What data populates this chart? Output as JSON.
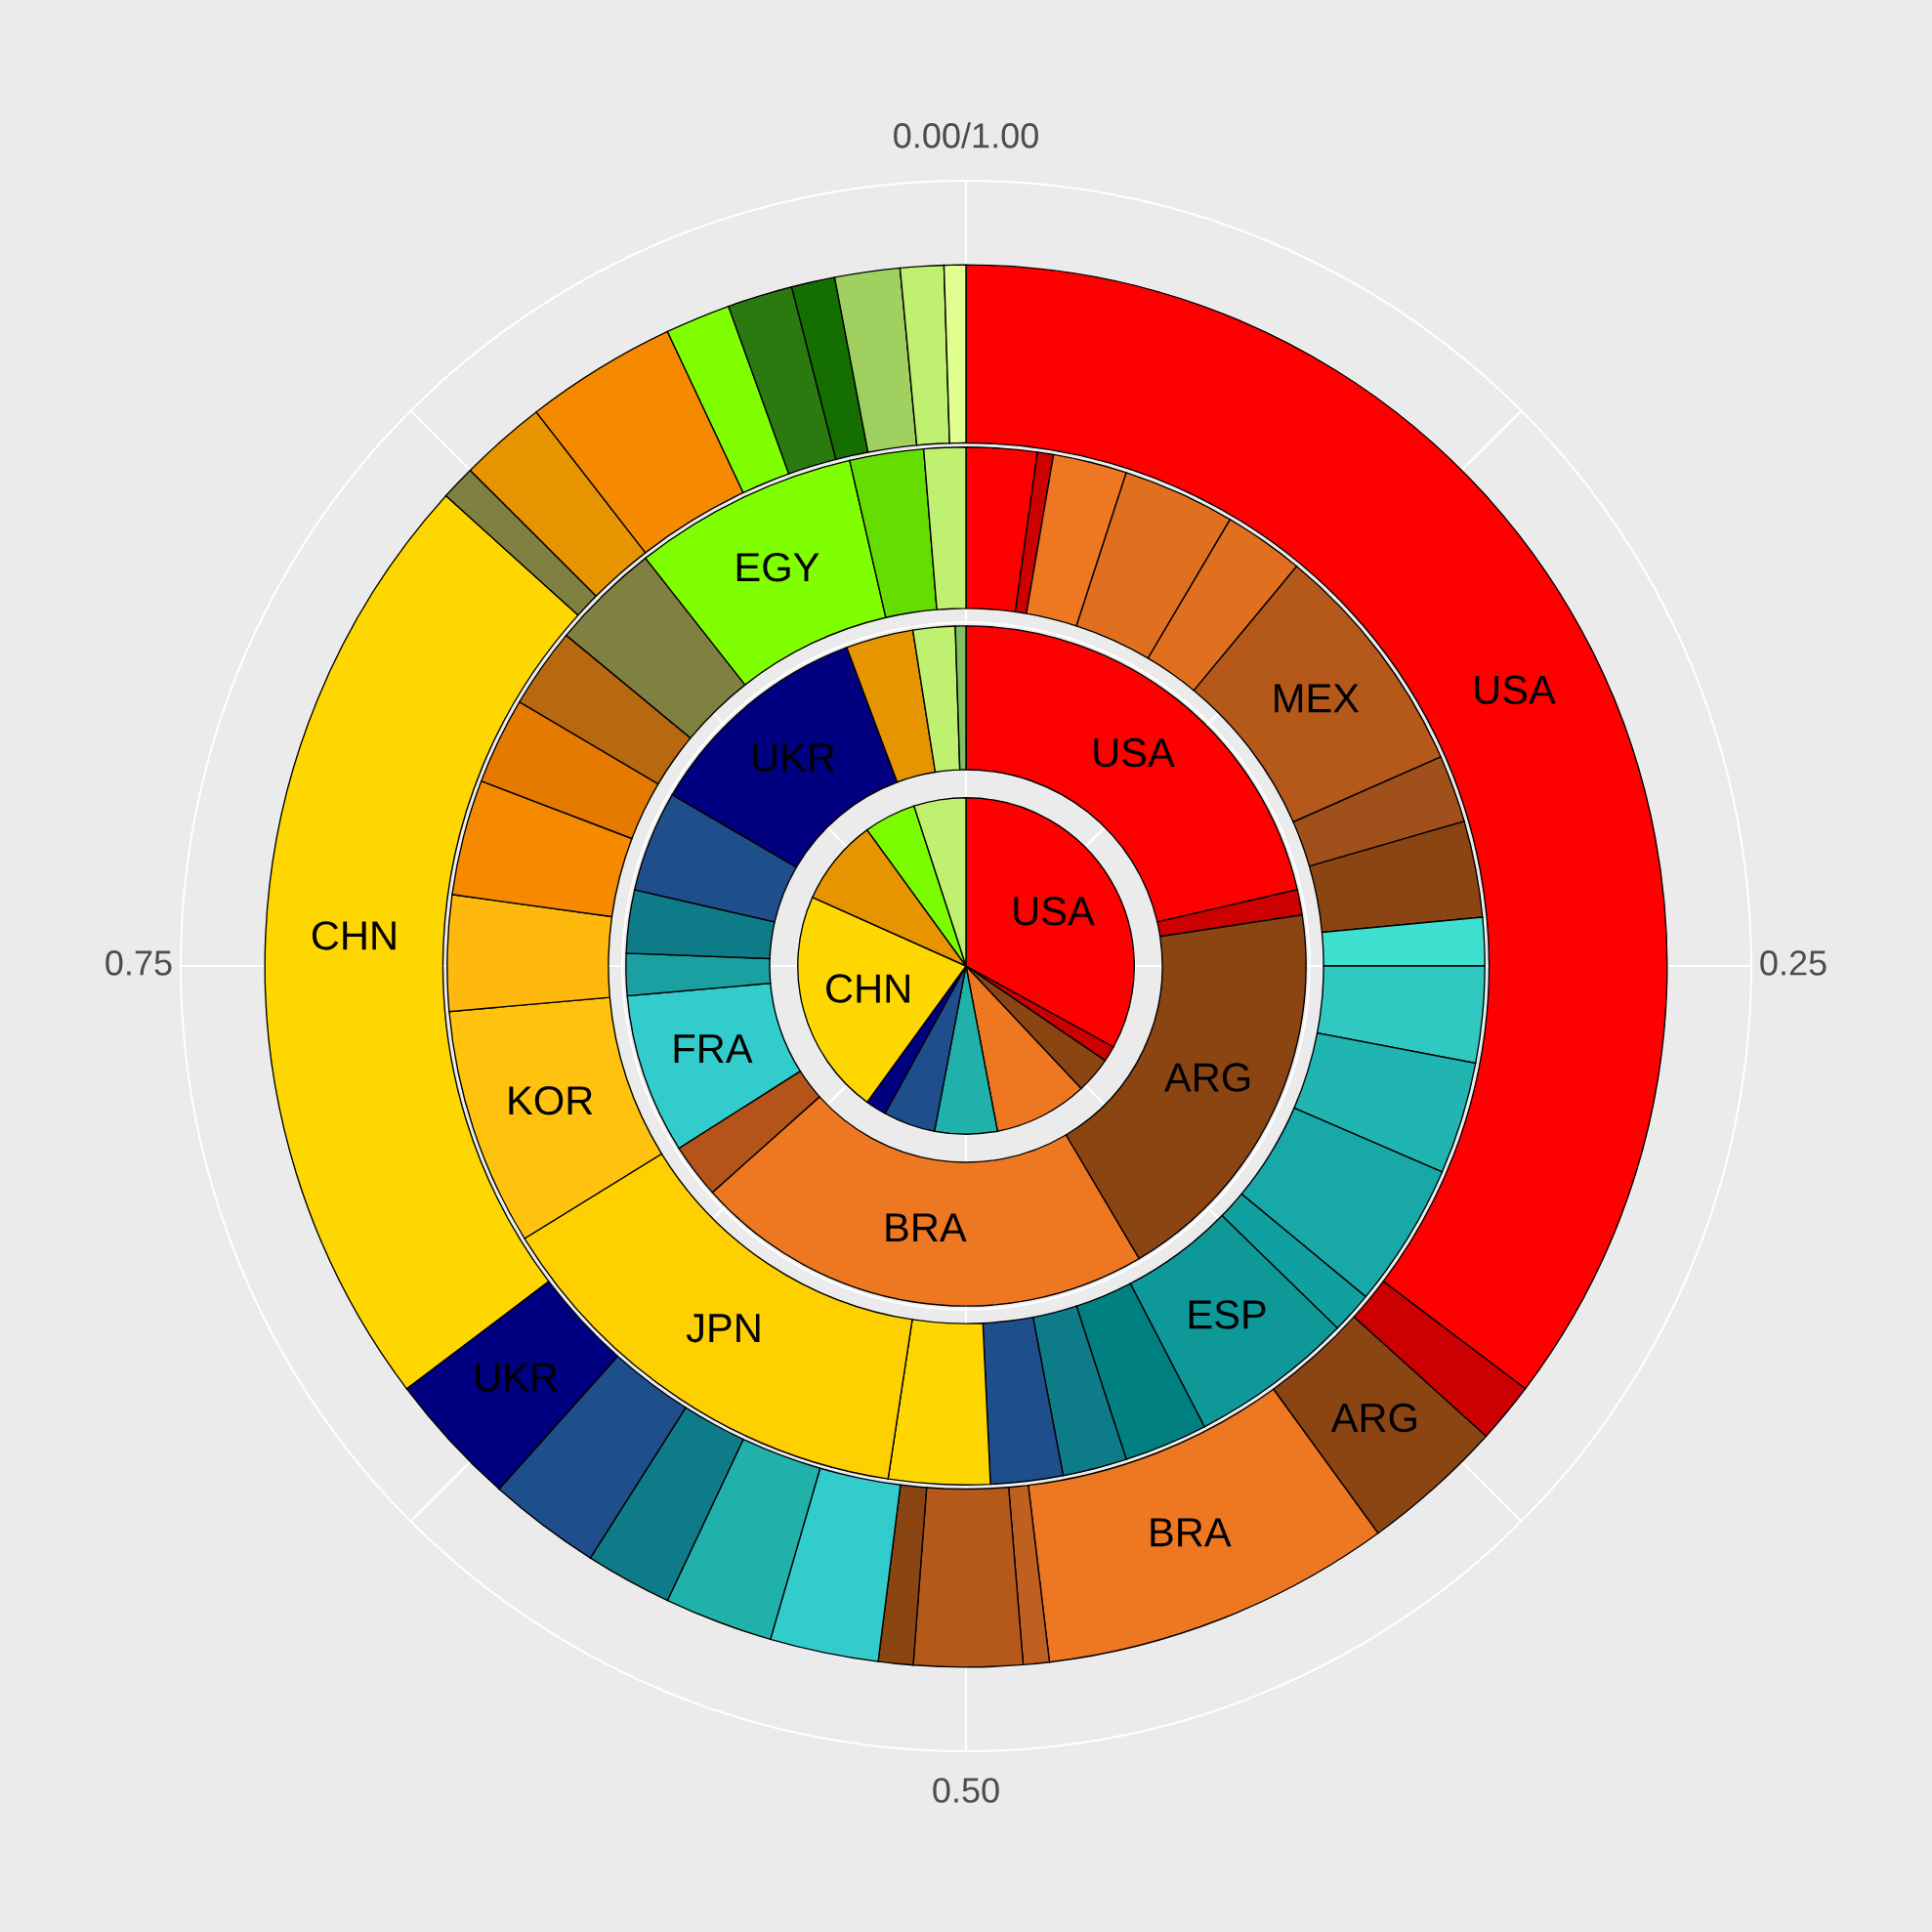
{
  "chart_data": {
    "type": "pie",
    "grid": true,
    "annotations": [
      "0.00/1.00",
      "0.25",
      "0.50",
      "0.75"
    ],
    "series": [
      {
        "value_labels": [
          "USA",
          null,
          null,
          null,
          null,
          null,
          null,
          "CHN",
          null,
          null,
          null
        ],
        "values": [
          33,
          1.5,
          3.5,
          9,
          6,
          5,
          2,
          21.7,
          8.3,
          5,
          5
        ],
        "colors": [
          "#ff0000",
          "#cc0000",
          "#8b4513",
          "#ee7722",
          "#20b2aa",
          "#1f4e8c",
          "#000080",
          "#ffd700",
          "#e69500",
          "#7cfc00",
          "#c0f070"
        ]
      },
      {
        "value_labels": [
          "USA",
          null,
          "ARG",
          "BRA",
          null,
          "FRA",
          null,
          null,
          null,
          "UKR",
          null,
          null,
          null
        ],
        "values": [
          21.4,
          1.2,
          18.9,
          21.9,
          2.6,
          7.6,
          2,
          3,
          4.8,
          10.9,
          3.2,
          2,
          0.5
        ],
        "colors": [
          "#ff0000",
          "#cc0000",
          "#8b4513",
          "#ee7722",
          "#b5541a",
          "#33cccc",
          "#1aa0a0",
          "#0e7c88",
          "#1f4e8c",
          "#000080",
          "#e69500",
          "#c0f070",
          "#80c060"
        ]
      },
      {
        "value_labels": [
          null,
          null,
          null,
          null,
          null,
          "MEX",
          null,
          null,
          null,
          null,
          null,
          null,
          null,
          "ESP",
          null,
          null,
          null,
          null,
          "JPN",
          "KOR",
          null,
          null,
          null,
          null,
          null,
          "EGY",
          null,
          null
        ],
        "values": [
          2.2,
          0.5,
          2.3,
          3.5,
          2.5,
          7.4,
          2.1,
          3.0,
          1.5,
          3,
          3.5,
          4.5,
          1.3,
          5.1,
          2.6,
          2,
          2.25,
          3.15,
          13.8,
          7.4,
          3.6,
          3.6,
          2.7,
          2.5,
          3.4,
          7.0,
          2.3,
          1.3
        ],
        "colors": [
          "#ff0000",
          "#cc0000",
          "#ee7722",
          "#e07020",
          "#e07020",
          "#b5591a",
          "#a0501a",
          "#8b4513",
          "#40e0d0",
          "#30c8c0",
          "#20b5b0",
          "#18a8a8",
          "#10a0a0",
          "#0e9898",
          "#008080",
          "#0e7c88",
          "#1f4e8c",
          "#ffd700",
          "#ffd000",
          "#ffc20e",
          "#ffb80e",
          "#f58a00",
          "#e67a00",
          "#b8680e",
          "#808040",
          "#7fff00",
          "#66dd00",
          "#c0f070"
        ]
      },
      {
        "value_labels": [
          "USA",
          null,
          "ARG",
          "BRA",
          null,
          null,
          null,
          null,
          null,
          null,
          null,
          "UKR",
          "CHN",
          null,
          null,
          null,
          null,
          null,
          null,
          null,
          null,
          null
        ],
        "values": [
          35.3,
          1.4,
          3.3,
          8.1,
          0.6,
          2.5,
          0.8,
          2.5,
          2.5,
          2.0,
          2.6,
          3.1,
          22.0,
          0.8,
          2.0,
          3.5,
          1.5,
          1.5,
          1.0,
          1.5,
          1.0,
          0.5
        ],
        "colors": [
          "#ff0000",
          "#cc0000",
          "#8b4513",
          "#ee7722",
          "#c06020",
          "#b5591a",
          "#8b4513",
          "#33cccc",
          "#20b2aa",
          "#0e7c88",
          "#1f4e8c",
          "#000080",
          "#ffd700",
          "#808040",
          "#e69500",
          "#f58a00",
          "#7fff00",
          "#2a7a10",
          "#146e00",
          "#a0d060",
          "#c0f070",
          "#e0ff90"
        ]
      }
    ]
  }
}
